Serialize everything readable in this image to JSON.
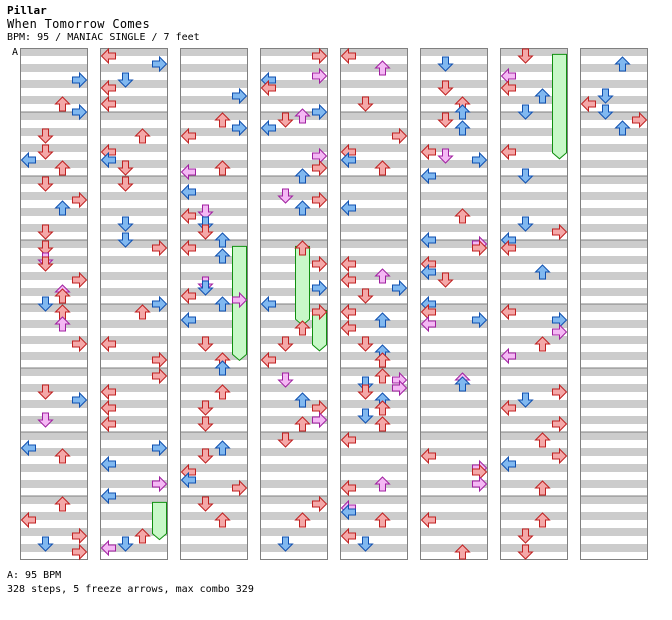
{
  "song": {
    "artist": "Pillar",
    "title": "When Tomorrow Comes",
    "info": "BPM: 95 / MANIAC SINGLE / 7 feet",
    "bpm_marker": "A"
  },
  "footer": {
    "bpm_line": "A: 95 BPM",
    "stats_line": "328 steps, 5 freeze arrows, max combo 329"
  },
  "colors": {
    "lane_gray": "#cccccc",
    "border": "#808080",
    "quarter_fill": "#f4a8a8",
    "quarter_stroke": "#c02020",
    "eighth_fill": "#80b8f0",
    "eighth_stroke": "#1050b0",
    "sixteenth_fill": "#f4b8f4",
    "sixteenth_stroke": "#a020a0",
    "freeze_fill": "#c8f8c8",
    "freeze_stroke": "#109010"
  },
  "icons": {
    "left": "arrow-left-icon",
    "down": "arrow-down-icon",
    "up": "arrow-up-icon",
    "right": "arrow-right-icon"
  },
  "chart_data": {
    "type": "step-chart",
    "columns": 8,
    "measures_per_column": 8,
    "lanes": [
      "left",
      "down",
      "up",
      "right"
    ],
    "freeze_arrows": [
      {
        "column": 1,
        "measure": 7.1,
        "lane": "right",
        "length": 0.55
      },
      {
        "column": 2,
        "measure": 3.1,
        "lane": "right",
        "length": 1.75
      },
      {
        "column": 3,
        "measure": 3.1,
        "lane": "up",
        "length": 1.2
      },
      {
        "column": 3,
        "measure": 4.1,
        "lane": "right",
        "length": 0.6
      },
      {
        "column": 6,
        "measure": 0.1,
        "lane": "right",
        "length": 1.6
      }
    ]
  }
}
